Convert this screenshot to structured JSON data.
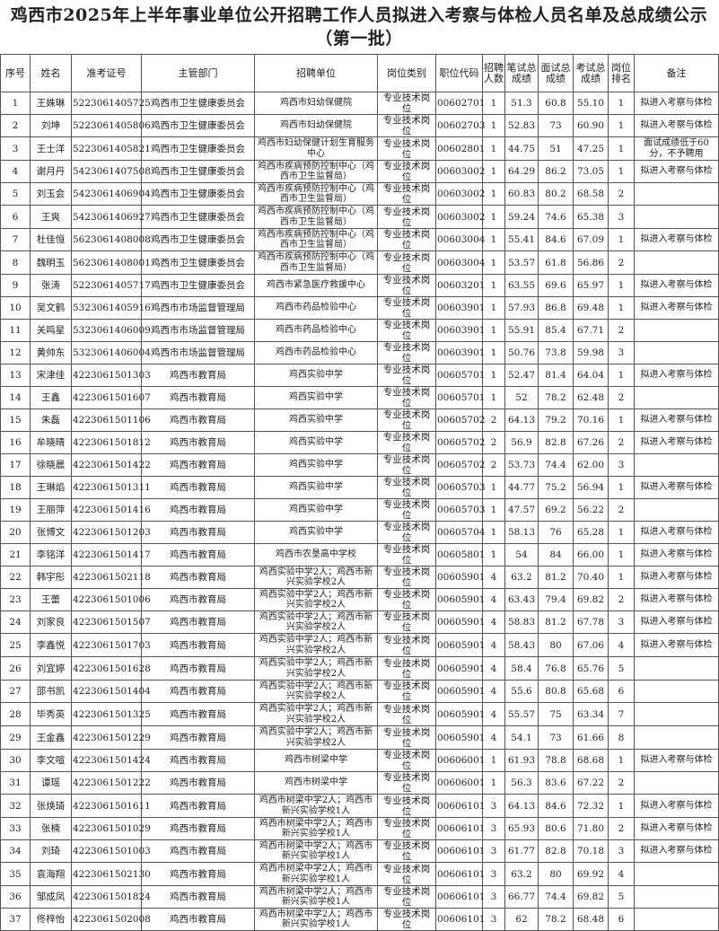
{
  "title": "鸡西市2025年上半年事业单位公开招聘工作人员拟进入考察与体检人员名单及总成绩公示（第一批）",
  "headers": [
    "序号",
    "姓名",
    "准考证号",
    "主管部门",
    "招聘单位",
    "岗位类别",
    "职位代码",
    "招聘人数",
    "笔试总成绩",
    "面试总成绩",
    "考试总成绩",
    "岗位排名",
    "备注"
  ],
  "rows": [
    [
      "1",
      "王姝琳",
      "5223061405725",
      "鸡西市卫生健康委员会",
      "鸡西市妇幼保健院",
      "专业技术岗位",
      "00602701",
      "1",
      "51.3",
      "60.8",
      "55.10",
      "1",
      "拟进入考察与体检"
    ],
    [
      "2",
      "刘坤",
      "5223061405806",
      "鸡西市卫生健康委员会",
      "鸡西市妇幼保健院",
      "专业技术岗位",
      "00602703",
      "1",
      "52.83",
      "73",
      "60.90",
      "1",
      "拟进入考察与体检"
    ],
    [
      "3",
      "王士洋",
      "5223061405821",
      "鸡西市卫生健康委员会",
      "鸡西市妇幼保健计划生育服务中心",
      "专业技术岗位",
      "00602801",
      "1",
      "44.75",
      "51",
      "47.25",
      "1",
      "面试成绩低于60分，不予聘用"
    ],
    [
      "4",
      "谢月丹",
      "5423061407508",
      "鸡西市卫生健康委员会",
      "鸡西市疾病预防控制中心（鸡西市卫生监督局）",
      "专业技术岗位",
      "00603002",
      "1",
      "64.29",
      "86.2",
      "73.05",
      "1",
      "拟进入考察与体检"
    ],
    [
      "5",
      "刘玉会",
      "5423061406904",
      "鸡西市卫生健康委员会",
      "鸡西市疾病预防控制中心（鸡西市卫生监督局）",
      "专业技术岗位",
      "00603002",
      "1",
      "60.83",
      "80.2",
      "68.58",
      "2",
      ""
    ],
    [
      "6",
      "王爽",
      "5423061406927",
      "鸡西市卫生健康委员会",
      "鸡西市疾病预防控制中心（鸡西市卫生监督局）",
      "专业技术岗位",
      "00603002",
      "1",
      "59.24",
      "74.6",
      "65.38",
      "3",
      ""
    ],
    [
      "7",
      "杜佳恒",
      "5623061408008",
      "鸡西市卫生健康委员会",
      "鸡西市疾病预防控制中心（鸡西市卫生监督局）",
      "专业技术岗位",
      "00603004",
      "1",
      "55.41",
      "84.6",
      "67.09",
      "1",
      "拟进入考察与体检"
    ],
    [
      "8",
      "魏明玉",
      "5623061408001",
      "鸡西市卫生健康委员会",
      "鸡西市疾病预防控制中心（鸡西市卫生监督局）",
      "专业技术岗位",
      "00603004",
      "1",
      "53.57",
      "61.8",
      "56.86",
      "2",
      ""
    ],
    [
      "9",
      "张涛",
      "5223061405717",
      "鸡西市卫生健康委员会",
      "鸡西市紧急医疗救援中心",
      "专业技术岗位",
      "00603201",
      "1",
      "63.55",
      "69.6",
      "65.97",
      "1",
      "拟进入考察与体检"
    ],
    [
      "10",
      "吴文鹤",
      "5323061405916",
      "鸡西市市场监督管理局",
      "鸡西市药品检验中心",
      "专业技术岗位",
      "00603901",
      "1",
      "57.93",
      "86.8",
      "69.48",
      "1",
      "拟进入考察与体检"
    ],
    [
      "11",
      "关鸣星",
      "5323061406009",
      "鸡西市市场监督管理局",
      "鸡西市药品检验中心",
      "专业技术岗位",
      "00603901",
      "1",
      "55.91",
      "85.4",
      "67.71",
      "2",
      ""
    ],
    [
      "12",
      "黄帅东",
      "5323061406004",
      "鸡西市市场监督管理局",
      "鸡西市药品检验中心",
      "专业技术岗位",
      "00603901",
      "1",
      "50.76",
      "73.8",
      "59.98",
      "3",
      ""
    ],
    [
      "13",
      "宋津佳",
      "4223061501303",
      "鸡西市教育局",
      "鸡西实验中学",
      "专业技术岗位",
      "00605701",
      "1",
      "52.47",
      "81.4",
      "64.04",
      "1",
      "拟进入考察与体检"
    ],
    [
      "14",
      "王鑫",
      "4223061501607",
      "鸡西市教育局",
      "鸡西实验中学",
      "专业技术岗位",
      "00605701",
      "1",
      "52",
      "78.2",
      "62.48",
      "2",
      ""
    ],
    [
      "15",
      "朱磊",
      "4223061501106",
      "鸡西市教育局",
      "鸡西实验中学",
      "专业技术岗位",
      "00605702",
      "2",
      "64.13",
      "79.2",
      "70.16",
      "1",
      "拟进入考察与体检"
    ],
    [
      "16",
      "牟晓晴",
      "4223061501812",
      "鸡西市教育局",
      "鸡西实验中学",
      "专业技术岗位",
      "00605702",
      "2",
      "56.9",
      "82.8",
      "67.26",
      "2",
      "拟进入考察与体检"
    ],
    [
      "17",
      "徐晓晨",
      "4223061501422",
      "鸡西市教育局",
      "鸡西实验中学",
      "专业技术岗位",
      "00605702",
      "2",
      "53.73",
      "74.4",
      "62.00",
      "3",
      ""
    ],
    [
      "18",
      "王琳焰",
      "4223061501311",
      "鸡西市教育局",
      "鸡西实验中学",
      "专业技术岗位",
      "00605703",
      "1",
      "44.77",
      "75.2",
      "56.94",
      "1",
      "拟进入考察与体检"
    ],
    [
      "19",
      "王丽萍",
      "4223061501416",
      "鸡西市教育局",
      "鸡西实验中学",
      "专业技术岗位",
      "00605703",
      "1",
      "47.57",
      "69.2",
      "56.22",
      "2",
      ""
    ],
    [
      "20",
      "张博文",
      "4223061501203",
      "鸡西市教育局",
      "鸡西实验中学",
      "专业技术岗位",
      "00605704",
      "1",
      "58.13",
      "76",
      "65.28",
      "1",
      "拟进入考察与体检"
    ],
    [
      "21",
      "李铭洋",
      "4223061501417",
      "鸡西市教育局",
      "鸡西市农垦高中学校",
      "专业技术岗位",
      "00605801",
      "1",
      "54",
      "84",
      "66.00",
      "1",
      "拟进入考察与体检"
    ],
    [
      "22",
      "韩宇彤",
      "4223061502118",
      "鸡西市教育局",
      "鸡西实验中学2人；鸡西市新兴实验学校2人",
      "专业技术岗位",
      "00605901",
      "4",
      "63.2",
      "81.2",
      "70.40",
      "1",
      "拟进入考察与体检"
    ],
    [
      "23",
      "王蕾",
      "4223061501006",
      "鸡西市教育局",
      "鸡西实验中学2人；鸡西市新兴实验学校2人",
      "专业技术岗位",
      "00605901",
      "4",
      "63.43",
      "79.4",
      "69.82",
      "2",
      "拟进入考察与体检"
    ],
    [
      "24",
      "刘家良",
      "4223061501507",
      "鸡西市教育局",
      "鸡西实验中学2人；鸡西市新兴实验学校2人",
      "专业技术岗位",
      "00605901",
      "4",
      "58.83",
      "81.2",
      "67.78",
      "3",
      "拟进入考察与体检"
    ],
    [
      "25",
      "李鑫悦",
      "4223061501703",
      "鸡西市教育局",
      "鸡西实验中学2人；鸡西市新兴实验学校2人",
      "专业技术岗位",
      "00605901",
      "4",
      "58.43",
      "80",
      "67.06",
      "4",
      "拟进入考察与体检"
    ],
    [
      "26",
      "刘宜婷",
      "4223061501628",
      "鸡西市教育局",
      "鸡西实验中学2人；鸡西市新兴实验学校2人",
      "专业技术岗位",
      "00605901",
      "4",
      "58.4",
      "76.8",
      "65.76",
      "5",
      ""
    ],
    [
      "27",
      "邵书凯",
      "4223061501404",
      "鸡西市教育局",
      "鸡西实验中学2人；鸡西市新兴实验学校2人",
      "专业技术岗位",
      "00605901",
      "4",
      "55.6",
      "80.8",
      "65.68",
      "6",
      ""
    ],
    [
      "28",
      "毕秀英",
      "4223061501325",
      "鸡西市教育局",
      "鸡西实验中学2人；鸡西市新兴实验学校2人",
      "专业技术岗位",
      "00605901",
      "4",
      "55.57",
      "75",
      "63.34",
      "7",
      ""
    ],
    [
      "29",
      "王金鑫",
      "4223061501229",
      "鸡西市教育局",
      "鸡西实验中学2人；鸡西市新兴实验学校2人",
      "专业技术岗位",
      "00605901",
      "4",
      "54.1",
      "73",
      "61.66",
      "8",
      ""
    ],
    [
      "30",
      "李文喧",
      "4223061501424",
      "鸡西市教育局",
      "鸡西市树梁中学",
      "专业技术岗位",
      "00606001",
      "1",
      "61.93",
      "78.8",
      "68.68",
      "1",
      "拟进入考察与体检"
    ],
    [
      "31",
      "谭瑶",
      "4223061501222",
      "鸡西市教育局",
      "鸡西市树梁中学",
      "专业技术岗位",
      "00606001",
      "1",
      "56.3",
      "83.6",
      "67.22",
      "2",
      ""
    ],
    [
      "32",
      "张焕琦",
      "4223061501611",
      "鸡西市教育局",
      "鸡西市树梁中学2人；鸡西市新兴实验学校1人",
      "专业技术岗位",
      "00606101",
      "3",
      "64.13",
      "84.6",
      "72.32",
      "1",
      "拟进入考察与体检"
    ],
    [
      "33",
      "张楠",
      "4223061501029",
      "鸡西市教育局",
      "鸡西市树梁中学2人；鸡西市新兴实验学校1人",
      "专业技术岗位",
      "00606101",
      "3",
      "65.93",
      "80.6",
      "71.80",
      "2",
      "拟进入考察与体检"
    ],
    [
      "34",
      "刘琦",
      "4223061501003",
      "鸡西市教育局",
      "鸡西市树梁中学2人；鸡西市新兴实验学校1人",
      "专业技术岗位",
      "00606101",
      "3",
      "61.77",
      "82.8",
      "70.18",
      "3",
      "拟进入考察与体检"
    ],
    [
      "35",
      "袁海翔",
      "4223061502130",
      "鸡西市教育局",
      "鸡西市树梁中学2人；鸡西市新兴实验学校1人",
      "专业技术岗位",
      "00606101",
      "3",
      "63.2",
      "80",
      "69.92",
      "4",
      ""
    ],
    [
      "36",
      "邹成凤",
      "4223061501824",
      "鸡西市教育局",
      "鸡西市树梁中学2人；鸡西市新兴实验学校1人",
      "专业技术岗位",
      "00606101",
      "3",
      "66.77",
      "74.4",
      "69.82",
      "5",
      ""
    ],
    [
      "37",
      "佟梓怡",
      "4223061502008",
      "鸡西市教育局",
      "鸡西市树梁中学2人；鸡西市新兴实验学校1人",
      "专业技术岗位",
      "00606101",
      "3",
      "62",
      "78.2",
      "68.48",
      "6",
      ""
    ]
  ]
}
